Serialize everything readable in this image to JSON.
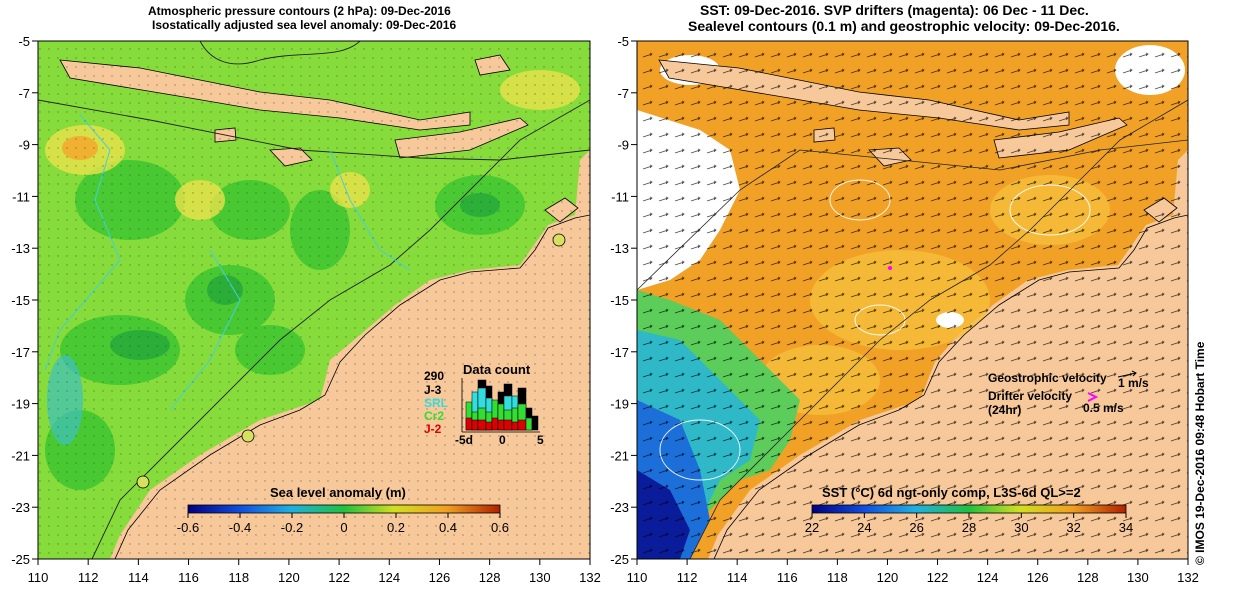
{
  "left_panel": {
    "title_line1": "Atmospheric pressure contours (2 hPa): 09-Dec-2016",
    "title_line2": "Isostatically adjusted sea level anomaly: 09-Dec-2016",
    "colorbar_label": "Sea level anomaly (m)",
    "colorbar_ticks": [
      "-0.6",
      "-0.4",
      "-0.2",
      "0",
      "0.2",
      "0.4",
      "0.6"
    ],
    "data_count": {
      "total": "290",
      "title": "Data count",
      "satellites": [
        {
          "name": "J-3",
          "color": "#000000"
        },
        {
          "name": "SRL",
          "color": "#33dddd"
        },
        {
          "name": "Cr2",
          "color": "#33dd33"
        },
        {
          "name": "J-2",
          "color": "#dd0000"
        }
      ],
      "axis_labels": [
        "-5d",
        "0",
        "5"
      ]
    }
  },
  "right_panel": {
    "title_line1": "SST: 09-Dec-2016. SVP drifters (magenta): 06 Dec - 11 Dec.",
    "title_line2": "Sealevel contours (0.1 m) and geostrophic velocity: 09-Dec-2016.",
    "colorbar_label": "SST (°C) 6d ngt-only comp, L3S-6d QL>=2",
    "colorbar_ticks": [
      "22",
      "24",
      "26",
      "28",
      "30",
      "32",
      "34"
    ],
    "legend": {
      "geo_label": "Geostrophic velocity",
      "geo_value": "1 m/s",
      "drifter_label1": "Drifter velocity",
      "drifter_label2": "(24hr)",
      "drifter_value": "0.5 m/s"
    }
  },
  "axes": {
    "x_ticks": [
      "110",
      "112",
      "114",
      "116",
      "118",
      "120",
      "122",
      "124",
      "126",
      "128",
      "130",
      "132"
    ],
    "y_ticks": [
      "-5",
      "-7",
      "-9",
      "-11",
      "-13",
      "-15",
      "-17",
      "-19",
      "-21",
      "-23",
      "-25"
    ]
  },
  "credit": "© IMOS 19-Dec-2016 09:48 Hobart Time",
  "colors": {
    "land": "#f7c89a",
    "ocean_green": "#7ddc3a",
    "sst_orange": "#f2a127",
    "sst_blue": "#1c4fbf"
  }
}
